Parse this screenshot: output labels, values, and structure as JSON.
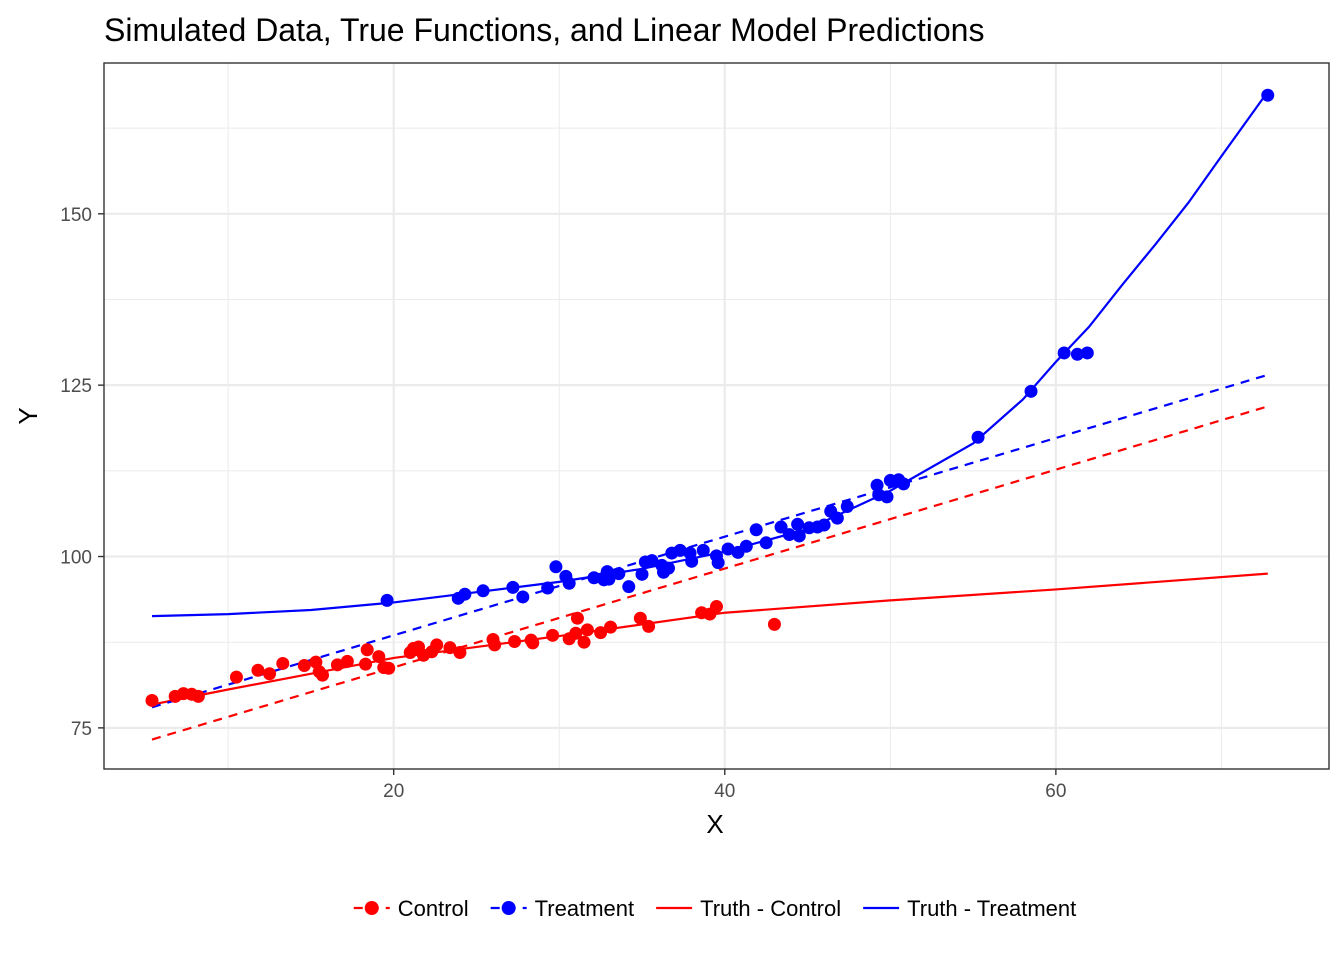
{
  "chart_data": {
    "type": "scatter",
    "title": "Simulated Data, True Functions, and Linear Model Predictions",
    "xlabel": "X",
    "ylabel": "Y",
    "xlim": [
      2.5,
      76.5
    ],
    "ylim": [
      69,
      172
    ],
    "x_ticks": [
      20,
      40,
      60
    ],
    "x_tick_labels": [
      "20",
      "40",
      "60"
    ],
    "x_minor": [
      10,
      30,
      50,
      70
    ],
    "y_ticks": [
      75,
      100,
      125,
      150
    ],
    "y_tick_labels": [
      "75",
      "100",
      "125",
      "150"
    ],
    "y_minor": [
      87.5,
      112.5,
      137.5,
      162.5
    ],
    "grid": true,
    "legend_position": "bottom",
    "colors": {
      "control": "#ff0000",
      "treatment": "#0000ff",
      "panel_border": "#333333",
      "grid": "#ebebeb"
    },
    "series": [
      {
        "name": "Control",
        "kind": "points",
        "color": "#ff0000",
        "points": [
          [
            5.4,
            79.0
          ],
          [
            6.8,
            79.6
          ],
          [
            7.3,
            80.0
          ],
          [
            7.8,
            79.9
          ],
          [
            8.2,
            79.6
          ],
          [
            10.5,
            82.4
          ],
          [
            11.8,
            83.4
          ],
          [
            12.5,
            82.9
          ],
          [
            13.3,
            84.4
          ],
          [
            14.6,
            84.1
          ],
          [
            15.3,
            84.6
          ],
          [
            15.5,
            83.2
          ],
          [
            15.7,
            82.7
          ],
          [
            16.6,
            84.2
          ],
          [
            17.2,
            84.7
          ],
          [
            18.3,
            84.3
          ],
          [
            18.4,
            86.4
          ],
          [
            19.1,
            85.4
          ],
          [
            19.4,
            83.8
          ],
          [
            19.7,
            83.7
          ],
          [
            21.0,
            86.0
          ],
          [
            21.2,
            86.6
          ],
          [
            21.5,
            86.8
          ],
          [
            21.8,
            85.6
          ],
          [
            22.3,
            86.1
          ],
          [
            22.6,
            87.1
          ],
          [
            23.4,
            86.7
          ],
          [
            24.0,
            86.0
          ],
          [
            26.0,
            87.9
          ],
          [
            26.1,
            87.1
          ],
          [
            27.3,
            87.6
          ],
          [
            28.3,
            87.8
          ],
          [
            28.4,
            87.4
          ],
          [
            29.6,
            88.5
          ],
          [
            30.6,
            88.0
          ],
          [
            31.0,
            88.8
          ],
          [
            31.1,
            91.0
          ],
          [
            31.5,
            87.5
          ],
          [
            31.7,
            89.3
          ],
          [
            32.5,
            88.9
          ],
          [
            33.1,
            89.7
          ],
          [
            34.9,
            91.0
          ],
          [
            35.4,
            89.8
          ],
          [
            38.6,
            91.8
          ],
          [
            39.1,
            91.6
          ],
          [
            39.5,
            92.7
          ],
          [
            43.0,
            90.1
          ]
        ]
      },
      {
        "name": "Treatment",
        "kind": "points",
        "color": "#0000ff",
        "points": [
          [
            19.6,
            93.6
          ],
          [
            23.9,
            93.9
          ],
          [
            24.3,
            94.5
          ],
          [
            25.4,
            95.0
          ],
          [
            27.2,
            95.5
          ],
          [
            27.8,
            94.1
          ],
          [
            29.3,
            95.4
          ],
          [
            29.8,
            98.5
          ],
          [
            30.4,
            97.1
          ],
          [
            30.6,
            96.1
          ],
          [
            32.1,
            96.9
          ],
          [
            32.7,
            96.6
          ],
          [
            32.9,
            97.8
          ],
          [
            33.0,
            96.7
          ],
          [
            33.6,
            97.5
          ],
          [
            34.2,
            95.6
          ],
          [
            35.0,
            97.4
          ],
          [
            35.2,
            99.2
          ],
          [
            35.6,
            99.4
          ],
          [
            36.2,
            98.7
          ],
          [
            36.3,
            97.7
          ],
          [
            36.6,
            98.3
          ],
          [
            36.8,
            100.5
          ],
          [
            37.3,
            100.9
          ],
          [
            37.9,
            100.5
          ],
          [
            38.0,
            99.3
          ],
          [
            38.7,
            100.9
          ],
          [
            39.5,
            100.1
          ],
          [
            39.6,
            99.1
          ],
          [
            40.2,
            101.1
          ],
          [
            40.8,
            100.6
          ],
          [
            41.3,
            101.5
          ],
          [
            41.9,
            103.9
          ],
          [
            42.5,
            102.0
          ],
          [
            43.4,
            104.3
          ],
          [
            43.9,
            103.2
          ],
          [
            44.4,
            104.7
          ],
          [
            44.5,
            103.0
          ],
          [
            45.1,
            104.2
          ],
          [
            45.6,
            104.3
          ],
          [
            46.0,
            104.6
          ],
          [
            46.4,
            106.6
          ],
          [
            46.8,
            105.6
          ],
          [
            47.4,
            107.3
          ],
          [
            49.2,
            110.4
          ],
          [
            49.3,
            109.0
          ],
          [
            49.8,
            108.7
          ],
          [
            50.0,
            111.1
          ],
          [
            50.5,
            111.2
          ],
          [
            50.8,
            110.6
          ],
          [
            55.3,
            117.4
          ],
          [
            58.5,
            124.1
          ],
          [
            60.5,
            129.7
          ],
          [
            61.3,
            129.5
          ],
          [
            61.9,
            129.7
          ],
          [
            72.8,
            167.3
          ]
        ]
      },
      {
        "name": "Truth - Control",
        "kind": "line",
        "style": "solid",
        "color": "#ff0000",
        "points": [
          [
            5.4,
            78.4
          ],
          [
            10,
            80.6
          ],
          [
            20,
            85.2
          ],
          [
            30,
            88.4
          ],
          [
            40,
            91.8
          ],
          [
            50,
            93.6
          ],
          [
            60,
            95.2
          ],
          [
            72.8,
            97.5
          ]
        ]
      },
      {
        "name": "Truth - Treatment",
        "kind": "line",
        "style": "solid",
        "color": "#0000ff",
        "points": [
          [
            5.4,
            91.3
          ],
          [
            10,
            91.6
          ],
          [
            15,
            92.2
          ],
          [
            20,
            93.3
          ],
          [
            25,
            94.8
          ],
          [
            30,
            96.3
          ],
          [
            35,
            98.2
          ],
          [
            40,
            100.7
          ],
          [
            45,
            104.0
          ],
          [
            50,
            109.6
          ],
          [
            55,
            116.5
          ],
          [
            58,
            122.9
          ],
          [
            60,
            128.4
          ],
          [
            62,
            133.5
          ],
          [
            64,
            139.6
          ],
          [
            66,
            145.5
          ],
          [
            68,
            151.6
          ],
          [
            70,
            158.4
          ],
          [
            72.8,
            167.8
          ]
        ]
      },
      {
        "kind": "line",
        "style": "dashed",
        "color": "#ff0000",
        "points": [
          [
            5.4,
            73.3
          ],
          [
            72.8,
            121.9
          ]
        ]
      },
      {
        "kind": "line",
        "style": "dashed",
        "color": "#0000ff",
        "points": [
          [
            5.4,
            78.0
          ],
          [
            72.8,
            126.5
          ]
        ]
      }
    ]
  },
  "legend": [
    {
      "label": "Control",
      "color": "#ff0000",
      "symbol": "point",
      "line": "dashed"
    },
    {
      "label": "Treatment",
      "color": "#0000ff",
      "symbol": "point",
      "line": "dashed"
    },
    {
      "label": "Truth - Control",
      "color": "#ff0000",
      "symbol": "none",
      "line": "solid"
    },
    {
      "label": "Truth - Treatment",
      "color": "#0000ff",
      "symbol": "none",
      "line": "solid"
    }
  ]
}
